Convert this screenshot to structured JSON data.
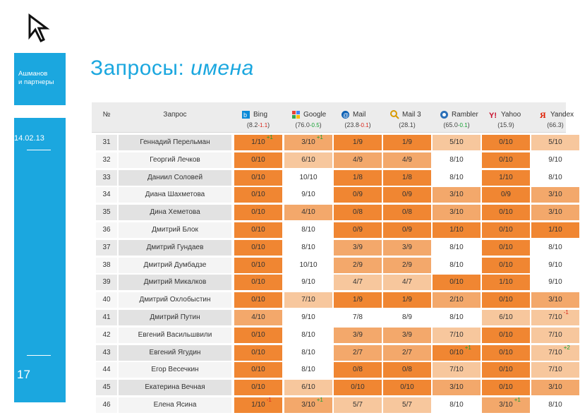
{
  "sidebar": {
    "company_line1": "Ашманов",
    "company_line2": "и партнеры",
    "date": "14.02.13",
    "page_number": "17"
  },
  "slide": {
    "title_main": "Запросы:",
    "title_italic": "имена"
  },
  "table": {
    "col_num": "№",
    "col_query": "Запрос",
    "engines": [
      {
        "name": "Bing",
        "count": "(8.2",
        "delta": "-1.1",
        "dir": "neg",
        "count_end": ")",
        "icon": "bing-icon"
      },
      {
        "name": "Google",
        "count": "(76.0",
        "delta": "-0.5",
        "dir": "pos",
        "count_end": ")",
        "icon": "google-icon"
      },
      {
        "name": "Mail",
        "count": "(23.8",
        "delta": "-0.1",
        "dir": "neg",
        "count_end": ")",
        "icon": "mail-icon"
      },
      {
        "name": "Mail 3",
        "count": "(28.1)",
        "delta": "",
        "dir": "",
        "count_end": "",
        "icon": "mail3-icon"
      },
      {
        "name": "Rambler",
        "count": "(65.0",
        "delta": "-0.1",
        "dir": "pos",
        "count_end": ")",
        "icon": "rambler-icon"
      },
      {
        "name": "Yahoo",
        "count": "(15.9)",
        "delta": "",
        "dir": "",
        "count_end": "",
        "icon": "yahoo-icon"
      },
      {
        "name": "Yandex",
        "count": "(66.3)",
        "delta": "",
        "dir": "",
        "count_end": "",
        "icon": "yandex-icon"
      }
    ],
    "rows": [
      {
        "num": "31",
        "name": "Геннадий Перельман",
        "cells": [
          "1/10",
          "3/10",
          "1/9",
          "1/9",
          "5/10",
          "0/10",
          "5/10"
        ],
        "deltas": [
          "+1",
          "+1",
          "",
          "",
          "",
          "",
          ""
        ]
      },
      {
        "num": "32",
        "name": "Георгий Лечков",
        "cells": [
          "0/10",
          "6/10",
          "4/9",
          "4/9",
          "8/10",
          "0/10",
          "9/10"
        ],
        "deltas": [
          "",
          "",
          "",
          "",
          "",
          "",
          ""
        ]
      },
      {
        "num": "33",
        "name": "Даниил Соловей",
        "cells": [
          "0/10",
          "10/10",
          "1/8",
          "1/8",
          "8/10",
          "1/10",
          "8/10"
        ],
        "deltas": [
          "",
          "",
          "",
          "",
          "",
          "",
          ""
        ]
      },
      {
        "num": "34",
        "name": "Диана Шахметова",
        "cells": [
          "0/10",
          "9/10",
          "0/9",
          "0/9",
          "3/10",
          "0/9",
          "3/10"
        ],
        "deltas": [
          "",
          "",
          "",
          "",
          "",
          "",
          ""
        ]
      },
      {
        "num": "35",
        "name": "Дина Хеметова",
        "cells": [
          "0/10",
          "4/10",
          "0/8",
          "0/8",
          "3/10",
          "0/10",
          "3/10"
        ],
        "deltas": [
          "",
          "",
          "",
          "",
          "",
          "",
          ""
        ]
      },
      {
        "num": "36",
        "name": "Дмитрий Блок",
        "cells": [
          "0/10",
          "8/10",
          "0/9",
          "0/9",
          "1/10",
          "0/10",
          "1/10"
        ],
        "deltas": [
          "",
          "",
          "",
          "",
          "",
          "",
          ""
        ]
      },
      {
        "num": "37",
        "name": "Дмитрий Гундаев",
        "cells": [
          "0/10",
          "8/10",
          "3/9",
          "3/9",
          "8/10",
          "0/10",
          "8/10"
        ],
        "deltas": [
          "",
          "",
          "",
          "",
          "",
          "",
          ""
        ]
      },
      {
        "num": "38",
        "name": "Дмитрий Думбадзе",
        "cells": [
          "0/10",
          "10/10",
          "2/9",
          "2/9",
          "8/10",
          "0/10",
          "9/10"
        ],
        "deltas": [
          "",
          "",
          "",
          "",
          "",
          "",
          ""
        ]
      },
      {
        "num": "39",
        "name": "Дмитрий Микалков",
        "cells": [
          "0/10",
          "9/10",
          "4/7",
          "4/7",
          "0/10",
          "1/10",
          "9/10"
        ],
        "deltas": [
          "",
          "",
          "",
          "",
          "",
          "",
          ""
        ]
      },
      {
        "num": "40",
        "name": "Дмитрий Охлобыстин",
        "cells": [
          "0/10",
          "7/10",
          "1/9",
          "1/9",
          "2/10",
          "0/10",
          "3/10"
        ],
        "deltas": [
          "",
          "",
          "",
          "",
          "",
          "",
          ""
        ]
      },
      {
        "num": "41",
        "name": "Дмитрий Путин",
        "cells": [
          "4/10",
          "9/10",
          "7/8",
          "8/9",
          "8/10",
          "6/10",
          "7/10"
        ],
        "deltas": [
          "",
          "",
          "",
          "",
          "",
          "",
          "-1"
        ]
      },
      {
        "num": "42",
        "name": "Евгений Васильшвили",
        "cells": [
          "0/10",
          "8/10",
          "3/9",
          "3/9",
          "7/10",
          "0/10",
          "7/10"
        ],
        "deltas": [
          "",
          "",
          "",
          "",
          "",
          "",
          ""
        ]
      },
      {
        "num": "43",
        "name": "Евгений Ягудин",
        "cells": [
          "0/10",
          "8/10",
          "2/7",
          "2/7",
          "0/10",
          "0/10",
          "7/10"
        ],
        "deltas": [
          "",
          "",
          "",
          "",
          "+1",
          "",
          "+2"
        ]
      },
      {
        "num": "44",
        "name": "Егор Весечкин",
        "cells": [
          "0/10",
          "8/10",
          "0/8",
          "0/8",
          "7/10",
          "0/10",
          "7/10"
        ],
        "deltas": [
          "",
          "",
          "",
          "",
          "",
          "",
          ""
        ]
      },
      {
        "num": "45",
        "name": "Екатерина Вечная",
        "cells": [
          "0/10",
          "6/10",
          "0/10",
          "0/10",
          "3/10",
          "0/10",
          "3/10"
        ],
        "deltas": [
          "",
          "",
          "",
          "",
          "",
          "",
          ""
        ]
      },
      {
        "num": "46",
        "name": "Елена Ясина",
        "cells": [
          "1/10",
          "3/10",
          "5/7",
          "5/7",
          "8/10",
          "3/10",
          "8/10"
        ],
        "deltas": [
          "-1",
          "+1",
          "",
          "",
          "",
          "+1",
          ""
        ]
      }
    ]
  },
  "colors": {
    "accent": "#1ba7df",
    "cell_fill": [
      "#f08632",
      "#f3a86b",
      "#f7c79d",
      "#ffffff"
    ]
  }
}
